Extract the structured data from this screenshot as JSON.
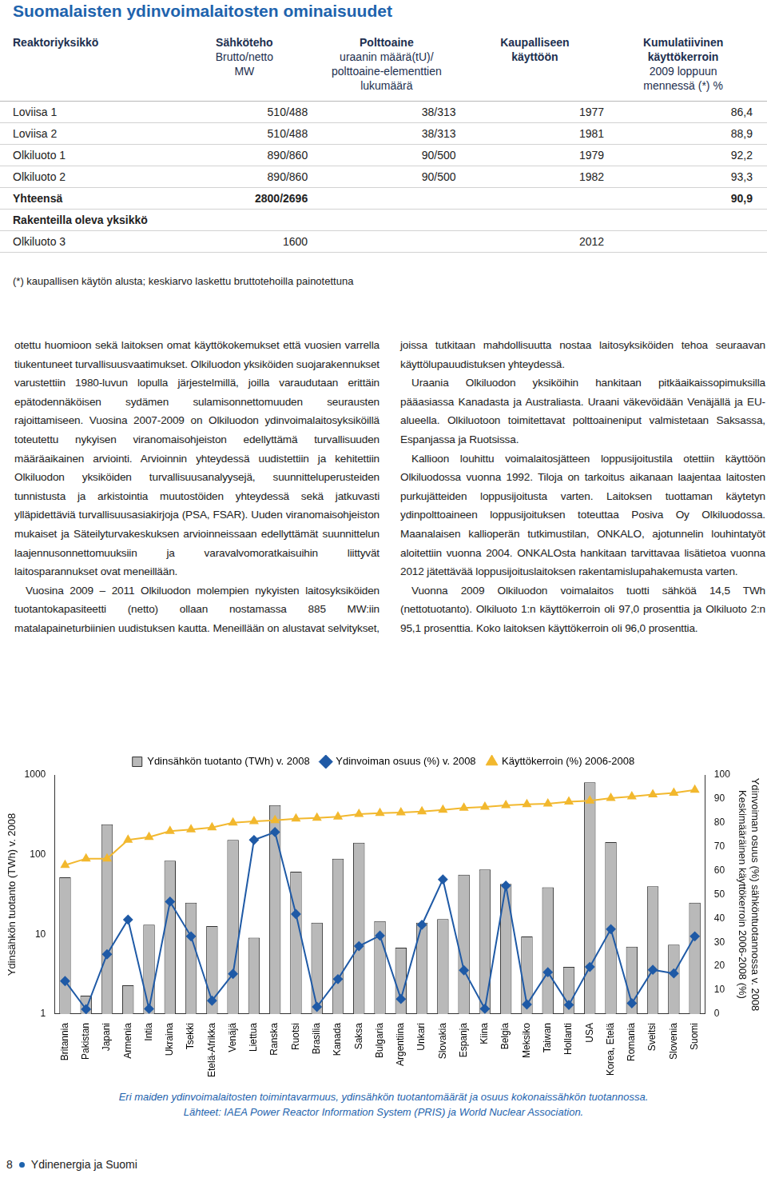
{
  "title": "Suomalaisten ydinvoimalaitosten ominaisuudet",
  "table": {
    "header": [
      [
        "Reaktoriyksikkö"
      ],
      [
        "Sähköteho",
        "Brutto/netto",
        "MW"
      ],
      [
        "Polttoaine",
        "uraanin määrä(tU)/",
        "polttoaine-elementtien",
        "lukumäärä"
      ],
      [
        "Kaupalliseen",
        "käyttöön"
      ],
      [
        "Kumulatiivinen",
        "käyttökerroin",
        "2009 loppuun",
        "mennessä (*) %"
      ]
    ],
    "rows": [
      [
        "Loviisa 1",
        "510/488",
        "38/313",
        "1977",
        "86,4"
      ],
      [
        "Loviisa 2",
        "510/488",
        "38/313",
        "1981",
        "88,9"
      ],
      [
        "Olkiluoto 1",
        "890/860",
        "90/500",
        "1979",
        "92,2"
      ],
      [
        "Olkiluoto 2",
        "890/860",
        "90/500",
        "1982",
        "93,3"
      ]
    ],
    "total": [
      "Yhteensä",
      "2800/2696",
      null,
      null,
      "90,9"
    ],
    "section": "Rakenteilla oleva yksikkö",
    "section_rows": [
      [
        "Olkiluoto 3",
        "1600",
        null,
        "2012",
        null
      ]
    ],
    "footnote": "(*) kaupallisen käytön alusta; keskiarvo laskettu bruttotehoilla painotettuna"
  },
  "text": {
    "paragraphs": [
      "otettu huomioon sekä laitoksen omat käyttökokemukset että vuosien varrella tiukentuneet turvallisuusvaatimukset. Olkiluodon yksiköiden suojarakennukset varustettiin 1980-luvun lopulla järjestelmillä, joilla varaudutaan erittäin epätodennäköisen sydämen sulamisonnettomuuden seurausten rajoittamiseen. Vuosina 2007-2009 on Olkiluodon ydinvoimalaitosyksiköillä toteutettu nykyisen viranomaisohjeiston edellyttämä turvallisuuden määräaikainen arviointi. Arvioinnin yhteydessä uudistettiin ja kehitettiin Olkiluodon yksiköiden turvallisuusanalyysejä, suunnitteluperusteiden tunnistusta ja arkistointia muutostöiden yhteydessä sekä jatkuvasti ylläpidettäviä turvallisuusasiakirjoja (PSA, FSAR). Uuden viranomaisohjeiston mukaiset ja Säteilyturvakeskuksen arvioinneissaan edellyttämät suunnittelun laajennusonnettomuuksiin ja varavalvomoratkaisuihin liittyvät laitosparannukset ovat meneillään.",
      "Vuosina 2009 – 2011 Olkiluodon molempien nykyisten laitosyksiköiden tuotantokapasiteetti (netto) ollaan nostamassa 885 MW:iin matalapaineturbiinien uudistuksen kautta. Meneillään on alustavat selvitykset, joissa tutkitaan mahdollisuutta nostaa laitosyksiköiden tehoa seuraavan käyttölupauudistuksen yhteydessä.",
      "Uraania Olkiluodon yksiköihin hankitaan pitkäaikaissopimuksilla pääasiassa Kanadasta ja Australiasta. Uraani väkevöidään Venäjällä ja EU-alueella. Olkiluotoon toimitettavat polttoaineniput valmistetaan Saksassa, Espanjassa ja Ruotsissa.",
      "Kallioon louhittu voimalaitosjätteen loppusijoitustila otettiin käyttöön Olkiluodossa vuonna 1992. Tiloja on tarkoitus aikanaan laajentaa laitosten purkujätteiden loppusijoitusta varten. Laitoksen tuottaman käytetyn ydinpolttoaineen loppusijoituksen toteuttaa Posiva Oy Olkiluodossa. Maanalaisen kallioperän tutkimustilan, ONKALO, ajotunnelin louhintatyöt aloitettiin vuonna 2004. ONKALOsta hankitaan tarvittavaa lisätietoa vuonna 2012 jätettävää loppusijoituslaitoksen rakentamislupahakemusta varten.",
      "Vuonna 2009 Olkiluodon voimalaitos tuotti sähköä 14,5 TWh (nettotuotanto). Olkiluoto 1:n käyttökerroin oli 97,0 prosenttia ja Olkiluoto 2:n 95,1 prosenttia. Koko laitoksen käyttökerroin oli 96,0 prosenttia."
    ]
  },
  "chart_data": {
    "type": "bar",
    "categories": [
      "Britannia",
      "Pakistan",
      "Japani",
      "Armenia",
      "Intia",
      "Ukraina",
      "Tsekki",
      "Etelä-Afrikka",
      "Venäjä",
      "Liettua",
      "Ranska",
      "Ruotsi",
      "Brasilia",
      "Kanada",
      "Saksa",
      "Bulgaria",
      "Argentiina",
      "Unkari",
      "Slovakia",
      "Espanja",
      "Kiina",
      "Belgia",
      "Meksiko",
      "Taiwan",
      "Hollanti",
      "USA",
      "Korea, Etelä",
      "Romania",
      "Sveitsi",
      "Slovenia",
      "Suomi"
    ],
    "series": [
      {
        "name": "Ydinsähkön tuotanto (TWh) v. 2008",
        "type": "bar",
        "color": "#b9b9b9",
        "values": [
          52,
          1.7,
          240,
          2.3,
          13.2,
          84,
          25,
          12.7,
          153,
          9.1,
          418,
          61,
          14,
          89,
          141,
          14.7,
          6.8,
          14,
          15.5,
          56,
          65,
          43,
          9.4,
          39,
          3.9,
          809,
          144,
          7,
          40,
          7.4,
          25
        ]
      },
      {
        "name": "Ydinvoiman osuus (%) v. 2008",
        "type": "line",
        "axis": "y2",
        "color": "#1f5aa6",
        "marker": "diamond",
        "values": [
          13.8,
          2,
          25,
          39.5,
          2.2,
          47,
          32.5,
          5.6,
          16.8,
          72.8,
          76.1,
          41.8,
          3,
          14.6,
          28.4,
          32.8,
          6.3,
          37.3,
          56.3,
          18.3,
          2.2,
          53.7,
          4,
          17.5,
          3.8,
          19.7,
          35.5,
          4.5,
          18.5,
          17,
          32.5
        ]
      },
      {
        "name": "Käyttökerroin (%) 2006-2008",
        "type": "line",
        "axis": "y2",
        "color": "#f2b82e",
        "marker": "triangle",
        "values": [
          62.3,
          65,
          65,
          72.8,
          74,
          76.5,
          77.2,
          78,
          80,
          80.6,
          81,
          81.7,
          82,
          82.5,
          83.6,
          84,
          84.3,
          84.7,
          85.4,
          86.2,
          86.6,
          87.3,
          87.7,
          88,
          88.8,
          89.2,
          90.3,
          91,
          91.8,
          92.5,
          93.7
        ]
      }
    ],
    "ylabel": "Ydinsähkön tuotanto (TWh) v. 2008",
    "y2label": [
      "Ydinvoiman osuus (%) sähköntuotannossa v. 2008",
      "Keskimääräinen käyttökerroin 2006-2008 (%)"
    ],
    "log": "y",
    "ylim": [
      1,
      1000
    ],
    "yticks": [
      1,
      10,
      100,
      1000
    ],
    "y2lim": [
      0,
      100
    ],
    "y2ticks": [
      0,
      10,
      20,
      30,
      40,
      50,
      60,
      70,
      80,
      90,
      100
    ],
    "grid": false,
    "legend": "top"
  },
  "caption": [
    "Eri maiden ydinvoimalaitosten toimintavarmuus, ydinsähkön tuotantomäärät ja osuus kokonaissähkön tuotannossa.",
    "Lähteet: IAEA Power Reactor Information System (PRIS) ja World Nuclear Association."
  ],
  "footer": {
    "page": "8",
    "publication": "Ydinenergia ja Suomi"
  }
}
